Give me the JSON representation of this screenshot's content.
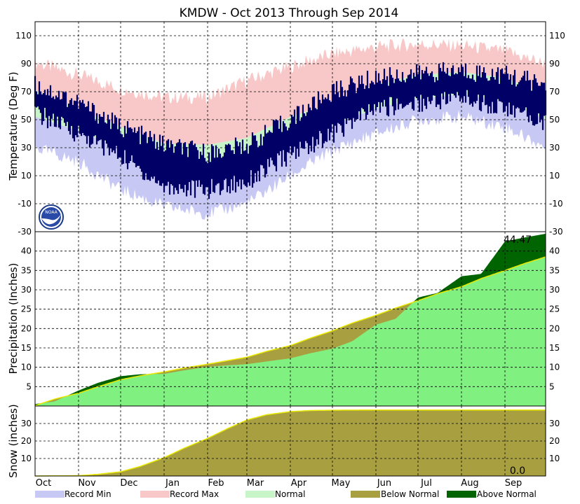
{
  "title": "KMDW - Oct 2013 Through Sep 2014",
  "months": [
    "Oct",
    "Nov",
    "Dec",
    "Jan",
    "Feb",
    "Mar",
    "Apr",
    "May",
    "Jun",
    "Jul",
    "Aug",
    "Sep"
  ],
  "colors": {
    "record_min": "#c8c8f5",
    "record_max": "#f8c8c8",
    "normal": "#c8f5c8",
    "observed": "#000066",
    "precip_normal": "#80f080",
    "below_normal": "#a8a040",
    "above_normal": "#006400",
    "normal_line": "#e8e800"
  },
  "legend": [
    {
      "label": "Record Min",
      "color_key": "record_min"
    },
    {
      "label": "Record Max",
      "color_key": "record_max"
    },
    {
      "label": "Normal",
      "color_key": "normal"
    },
    {
      "label": "Below Normal",
      "color_key": "below_normal"
    },
    {
      "label": "Above Normal",
      "color_key": "above_normal"
    }
  ],
  "noaa_logo_text": "NOAA",
  "chart_data": [
    {
      "type": "area",
      "panel": "temperature",
      "ylabel": "Temperature (Deg F)",
      "ylim": [
        -30,
        120
      ],
      "yticks": [
        -30,
        -10,
        10,
        30,
        50,
        70,
        90,
        110
      ],
      "grid": true,
      "x": [
        "2013-10-01",
        "2013-11-01",
        "2013-12-01",
        "2014-01-01",
        "2014-02-01",
        "2014-03-01",
        "2014-04-01",
        "2014-05-01",
        "2014-06-01",
        "2014-07-01",
        "2014-08-01",
        "2014-09-01",
        "2014-09-30"
      ],
      "series": [
        {
          "name": "Record Max",
          "values": [
            91,
            82,
            72,
            66,
            66,
            78,
            88,
            97,
            102,
            104,
            103,
            99,
            90
          ]
        },
        {
          "name": "Record Min",
          "values": [
            30,
            20,
            0,
            -12,
            -17,
            -10,
            10,
            28,
            40,
            50,
            52,
            45,
            30
          ]
        },
        {
          "name": "Normal High",
          "values": [
            71,
            58,
            45,
            33,
            32,
            37,
            52,
            62,
            75,
            82,
            84,
            80,
            68
          ]
        },
        {
          "name": "Normal Low",
          "values": [
            52,
            42,
            30,
            22,
            18,
            22,
            38,
            46,
            58,
            65,
            68,
            63,
            50
          ]
        },
        {
          "name": "Observed High",
          "values": [
            75,
            62,
            45,
            32,
            26,
            32,
            50,
            70,
            80,
            83,
            85,
            82,
            75
          ]
        },
        {
          "name": "Observed Low",
          "values": [
            55,
            40,
            24,
            2,
            0,
            6,
            25,
            40,
            58,
            62,
            66,
            58,
            48
          ]
        }
      ]
    },
    {
      "type": "area",
      "panel": "precipitation",
      "ylabel": "Precipitation (Inches)",
      "ylim": [
        0,
        45
      ],
      "yticks": [
        5,
        10,
        15,
        20,
        25,
        30,
        35,
        40
      ],
      "grid": true,
      "total_label": "44.47",
      "x": [
        "2013-10-01",
        "2013-10-15",
        "2013-11-01",
        "2013-11-15",
        "2013-12-01",
        "2013-12-15",
        "2014-01-01",
        "2014-01-15",
        "2014-02-01",
        "2014-02-15",
        "2014-03-01",
        "2014-03-15",
        "2014-04-01",
        "2014-04-15",
        "2014-05-01",
        "2014-05-15",
        "2014-06-01",
        "2014-06-15",
        "2014-07-01",
        "2014-07-15",
        "2014-08-01",
        "2014-08-15",
        "2014-09-01",
        "2014-09-15",
        "2014-09-30"
      ],
      "series": [
        {
          "name": "Normal",
          "values": [
            0.1,
            1.8,
            3.3,
            5.0,
            6.8,
            7.8,
            8.8,
            9.8,
            10.8,
            11.7,
            12.6,
            14.1,
            15.6,
            17.5,
            19.4,
            21.4,
            23.4,
            25.3,
            27.2,
            29.0,
            30.8,
            32.9,
            35.0,
            36.8,
            38.5
          ]
        },
        {
          "name": "Observed",
          "values": [
            0.5,
            1.2,
            4.0,
            6.0,
            7.7,
            8.2,
            8.3,
            9.2,
            10.1,
            10.5,
            10.8,
            11.5,
            12.3,
            13.6,
            14.8,
            16.7,
            21.0,
            22.5,
            28.0,
            29.2,
            33.5,
            34.1,
            42.5,
            43.5,
            44.47
          ]
        }
      ]
    },
    {
      "type": "area",
      "panel": "snow",
      "ylabel": "Snow (inches)",
      "ylim": [
        0,
        40
      ],
      "yticks": [
        10,
        20,
        30
      ],
      "grid": true,
      "total_label": "0.0",
      "x": [
        "2013-10-01",
        "2013-11-01",
        "2013-11-15",
        "2013-12-01",
        "2013-12-15",
        "2014-01-01",
        "2014-01-15",
        "2014-02-01",
        "2014-02-15",
        "2014-03-01",
        "2014-03-15",
        "2014-04-01",
        "2014-04-15",
        "2014-05-01",
        "2014-06-01",
        "2014-07-01",
        "2014-08-01",
        "2014-09-01",
        "2014-09-30"
      ],
      "series": [
        {
          "name": "Normal",
          "values": [
            0,
            0.2,
            1.0,
            2.4,
            5.5,
            10.5,
            15.8,
            21.5,
            27.0,
            32.0,
            35.0,
            36.8,
            37.4,
            37.6,
            37.7,
            37.7,
            37.7,
            37.7,
            37.7
          ]
        },
        {
          "name": "Observed",
          "values": [
            0,
            0,
            0,
            0,
            0,
            0,
            0,
            0,
            0,
            0,
            0,
            0,
            0,
            0,
            0,
            0,
            0,
            0,
            0
          ]
        }
      ]
    }
  ]
}
